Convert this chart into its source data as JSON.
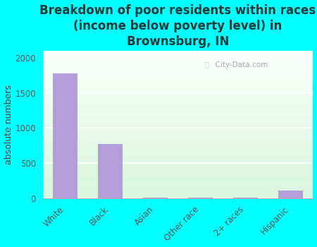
{
  "categories": [
    "White",
    "Black",
    "Asian",
    "Other race",
    "2+ races",
    "Hispanic"
  ],
  "values": [
    1780,
    775,
    5,
    12,
    8,
    105
  ],
  "bar_color": "#b39ddb",
  "title": "Breakdown of poor residents within races\n(income below poverty level) in\nBrownsburg, IN",
  "ylabel": "absolute numbers",
  "ylim": [
    0,
    2100
  ],
  "yticks": [
    0,
    500,
    1000,
    1500,
    2000
  ],
  "background_color": "#00ffff",
  "watermark": "City-Data.com",
  "title_fontsize": 12,
  "ylabel_fontsize": 9,
  "tick_fontsize": 8.5,
  "title_color": "#1a3a3a"
}
